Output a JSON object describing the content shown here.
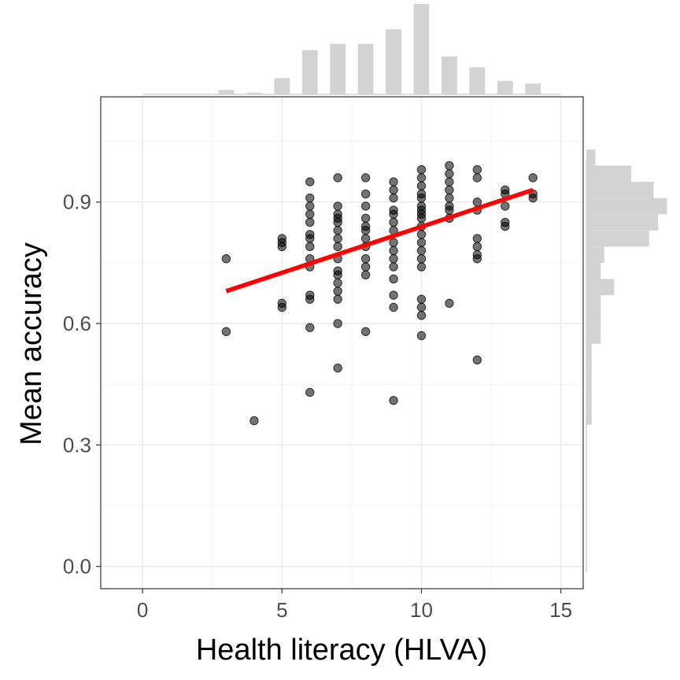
{
  "chart_data": {
    "type": "scatter",
    "title": "",
    "xlabel": "Health literacy (HLVA)",
    "ylabel": "Mean accuracy",
    "xlim": [
      -1.5,
      15.8
    ],
    "ylim": [
      -0.055,
      1.16
    ],
    "x_ticks": [
      "0",
      "5",
      "10",
      "15"
    ],
    "y_ticks": [
      "0.0",
      "0.3",
      "0.6",
      "0.9"
    ],
    "grid": true,
    "points": [
      [
        3,
        0.76
      ],
      [
        3,
        0.58
      ],
      [
        4,
        0.36
      ],
      [
        5,
        0.81
      ],
      [
        5,
        0.8
      ],
      [
        5,
        0.79
      ],
      [
        5,
        0.65
      ],
      [
        5,
        0.64
      ],
      [
        6,
        0.95
      ],
      [
        6,
        0.91
      ],
      [
        6,
        0.89
      ],
      [
        6,
        0.87
      ],
      [
        6,
        0.85
      ],
      [
        6,
        0.82
      ],
      [
        6,
        0.81
      ],
      [
        6,
        0.79
      ],
      [
        6,
        0.76
      ],
      [
        6,
        0.74
      ],
      [
        6,
        0.67
      ],
      [
        6,
        0.66
      ],
      [
        6,
        0.59
      ],
      [
        6,
        0.43
      ],
      [
        7,
        0.96
      ],
      [
        7,
        0.89
      ],
      [
        7,
        0.87
      ],
      [
        7,
        0.86
      ],
      [
        7,
        0.85
      ],
      [
        7,
        0.83
      ],
      [
        7,
        0.81
      ],
      [
        7,
        0.79
      ],
      [
        7,
        0.76
      ],
      [
        7,
        0.73
      ],
      [
        7,
        0.72
      ],
      [
        7,
        0.7
      ],
      [
        7,
        0.68
      ],
      [
        7,
        0.66
      ],
      [
        7,
        0.6
      ],
      [
        7,
        0.49
      ],
      [
        8,
        0.96
      ],
      [
        8,
        0.92
      ],
      [
        8,
        0.89
      ],
      [
        8,
        0.86
      ],
      [
        8,
        0.84
      ],
      [
        8,
        0.83
      ],
      [
        8,
        0.81
      ],
      [
        8,
        0.79
      ],
      [
        8,
        0.76
      ],
      [
        8,
        0.74
      ],
      [
        8,
        0.72
      ],
      [
        8,
        0.58
      ],
      [
        9,
        0.95
      ],
      [
        9,
        0.93
      ],
      [
        9,
        0.91
      ],
      [
        9,
        0.88
      ],
      [
        9,
        0.87
      ],
      [
        9,
        0.85
      ],
      [
        9,
        0.83
      ],
      [
        9,
        0.8
      ],
      [
        9,
        0.78
      ],
      [
        9,
        0.76
      ],
      [
        9,
        0.74
      ],
      [
        9,
        0.71
      ],
      [
        9,
        0.67
      ],
      [
        9,
        0.64
      ],
      [
        9,
        0.41
      ],
      [
        10,
        0.98
      ],
      [
        10,
        0.96
      ],
      [
        10,
        0.94
      ],
      [
        10,
        0.92
      ],
      [
        10,
        0.91
      ],
      [
        10,
        0.89
      ],
      [
        10,
        0.88
      ],
      [
        10,
        0.87
      ],
      [
        10,
        0.86
      ],
      [
        10,
        0.84
      ],
      [
        10,
        0.82
      ],
      [
        10,
        0.8
      ],
      [
        10,
        0.78
      ],
      [
        10,
        0.76
      ],
      [
        10,
        0.74
      ],
      [
        10,
        0.66
      ],
      [
        10,
        0.64
      ],
      [
        10,
        0.62
      ],
      [
        10,
        0.57
      ],
      [
        11,
        0.99
      ],
      [
        11,
        0.97
      ],
      [
        11,
        0.95
      ],
      [
        11,
        0.93
      ],
      [
        11,
        0.91
      ],
      [
        11,
        0.89
      ],
      [
        11,
        0.88
      ],
      [
        11,
        0.86
      ],
      [
        11,
        0.65
      ],
      [
        12,
        0.98
      ],
      [
        12,
        0.96
      ],
      [
        12,
        0.9
      ],
      [
        12,
        0.88
      ],
      [
        12,
        0.81
      ],
      [
        12,
        0.79
      ],
      [
        12,
        0.77
      ],
      [
        12,
        0.76
      ],
      [
        12,
        0.51
      ],
      [
        13,
        0.93
      ],
      [
        13,
        0.92
      ],
      [
        13,
        0.89
      ],
      [
        13,
        0.85
      ],
      [
        13,
        0.84
      ],
      [
        14,
        0.96
      ],
      [
        14,
        0.92
      ],
      [
        14,
        0.91
      ]
    ],
    "trend_line": {
      "color": "#ff0000",
      "x": [
        3,
        14
      ],
      "y": [
        0.68,
        0.93
      ]
    },
    "point_color": "#000000",
    "point_opacity": 0.55,
    "marginal_x_histogram": {
      "color": "#d3d3d3",
      "bin_centers": [
        3,
        4,
        5,
        6,
        7,
        8,
        9,
        10,
        11,
        12,
        13,
        14
      ],
      "relative_heights": [
        0.05,
        0.02,
        0.18,
        0.49,
        0.56,
        0.56,
        0.72,
        1.0,
        0.42,
        0.3,
        0.15,
        0.12
      ]
    },
    "marginal_y_histogram": {
      "color": "#d3d3d3",
      "bin_range": [
        -0.015,
        1.0
      ],
      "bin_edges": [
        0.35,
        0.39,
        0.43,
        0.47,
        0.51,
        0.55,
        0.59,
        0.63,
        0.67,
        0.71,
        0.75,
        0.79,
        0.83,
        0.87,
        0.91,
        0.95,
        0.99
      ],
      "relative_heights": [
        0.06,
        0.06,
        0.06,
        0.06,
        0.06,
        0.16,
        0.16,
        0.16,
        0.31,
        0.16,
        0.2,
        0.7,
        0.8,
        0.9,
        0.75,
        0.5,
        0.1
      ]
    }
  }
}
